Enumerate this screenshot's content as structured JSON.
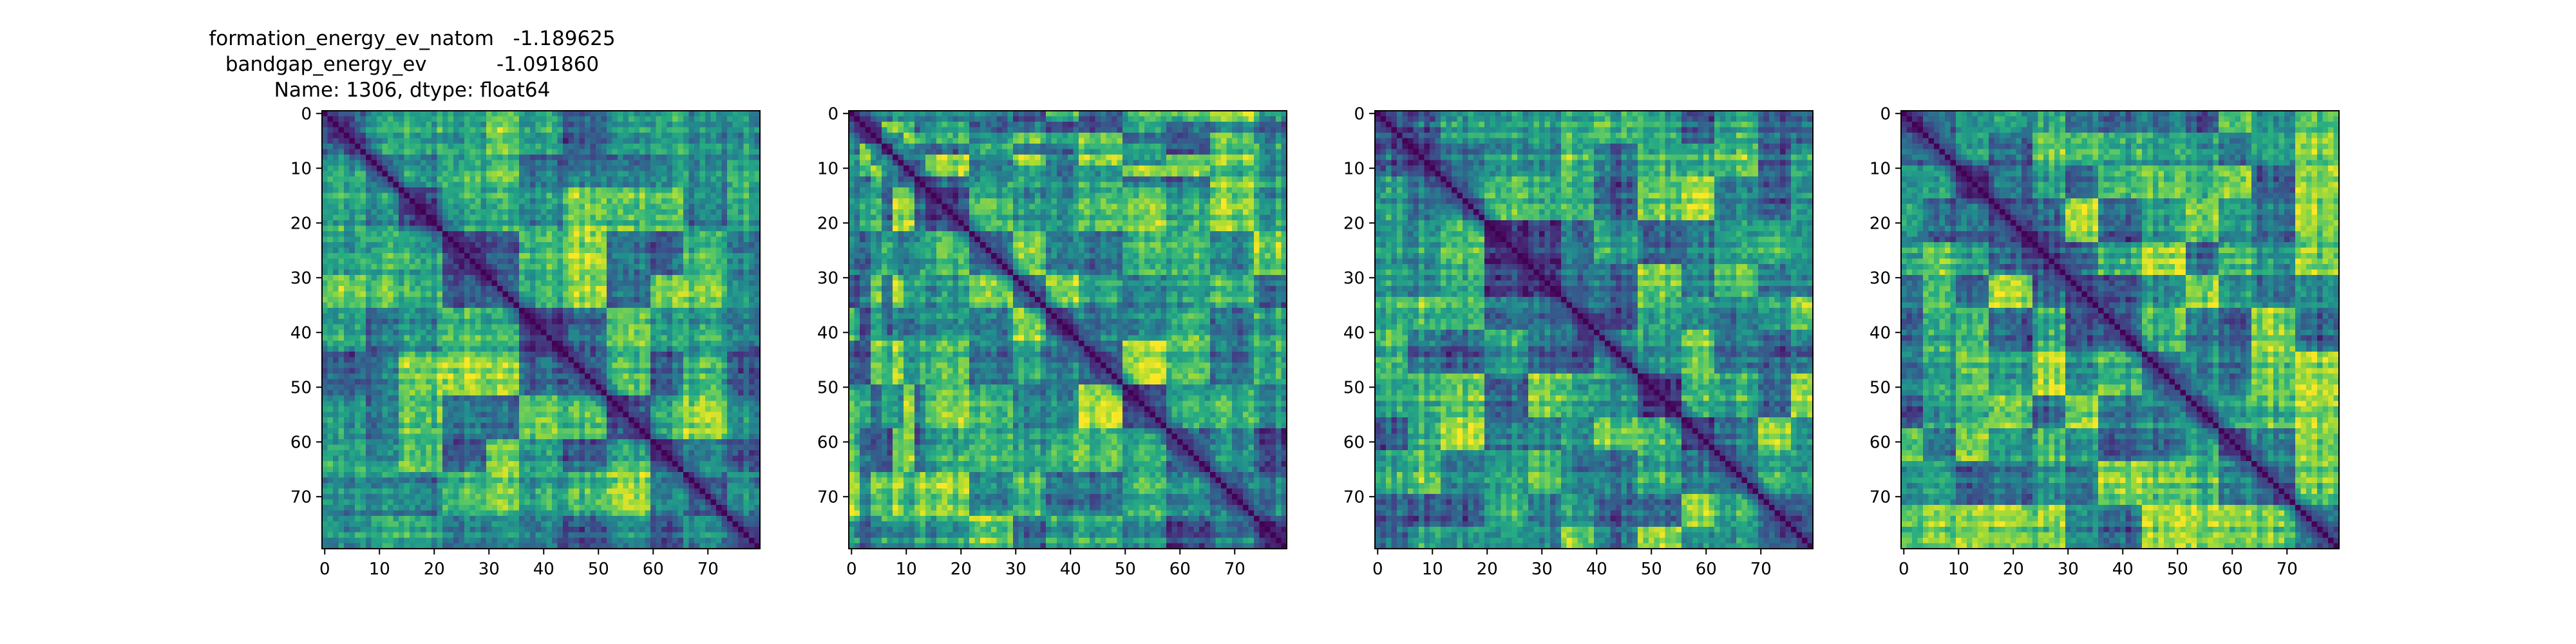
{
  "chart_data": [
    {
      "type": "heatmap",
      "title_lines": [
        "formation_energy_ev_natom   -1.189625",
        "bandgap_energy_ev           -1.091860",
        "Name: 1306, dtype: float64"
      ],
      "matrix_size": 80,
      "colormap": "viridis",
      "diagonal_value": 0,
      "xticks": [
        0,
        10,
        20,
        30,
        40,
        50,
        60,
        70
      ],
      "yticks": [
        0,
        10,
        20,
        30,
        40,
        50,
        60,
        70
      ],
      "xlim": [
        -0.5,
        79.5
      ],
      "ylim": [
        79.5,
        -0.5
      ],
      "grid": false,
      "block_boundaries": [
        0,
        8,
        14,
        22,
        30,
        36,
        44,
        52,
        60,
        66,
        74,
        80
      ],
      "seed": 11
    },
    {
      "type": "heatmap",
      "title_lines": [],
      "matrix_size": 80,
      "colormap": "viridis",
      "diagonal_value": 0,
      "xticks": [
        0,
        10,
        20,
        30,
        40,
        50,
        60,
        70
      ],
      "yticks": [
        0,
        10,
        20,
        30,
        40,
        50,
        60,
        70
      ],
      "xlim": [
        -0.5,
        79.5
      ],
      "ylim": [
        79.5,
        -0.5
      ],
      "grid": false,
      "block_boundaries": [
        0,
        2,
        4,
        6,
        8,
        10,
        12,
        14,
        22,
        30,
        36,
        42,
        50,
        58,
        66,
        74,
        80
      ],
      "seed": 29
    },
    {
      "type": "heatmap",
      "title_lines": [],
      "matrix_size": 80,
      "colormap": "viridis",
      "diagonal_value": 0,
      "xticks": [
        0,
        10,
        20,
        30,
        40,
        50,
        60,
        70
      ],
      "yticks": [
        0,
        10,
        20,
        30,
        40,
        50,
        60,
        70
      ],
      "xlim": [
        -0.5,
        79.5
      ],
      "ylim": [
        79.5,
        -0.5
      ],
      "grid": false,
      "block_boundaries": [
        0,
        6,
        12,
        20,
        28,
        34,
        40,
        48,
        56,
        62,
        70,
        76,
        80
      ],
      "seed": 47
    },
    {
      "type": "heatmap",
      "title_lines": [],
      "matrix_size": 80,
      "colormap": "viridis",
      "diagonal_value": 0,
      "xticks": [
        0,
        10,
        20,
        30,
        40,
        50,
        60,
        70
      ],
      "yticks": [
        0,
        10,
        20,
        30,
        40,
        50,
        60,
        70
      ],
      "xlim": [
        -0.5,
        79.5
      ],
      "ylim": [
        79.5,
        -0.5
      ],
      "grid": false,
      "block_boundaries": [
        0,
        4,
        10,
        16,
        24,
        30,
        36,
        44,
        52,
        58,
        64,
        72,
        80
      ],
      "seed": 83
    }
  ]
}
